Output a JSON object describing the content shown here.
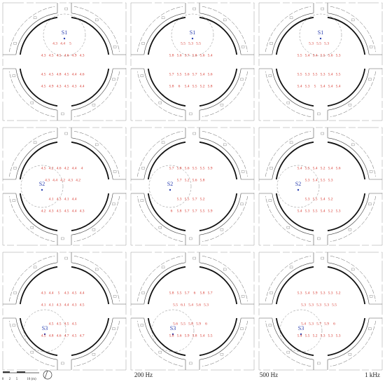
{
  "panels": [
    {
      "source": "S1",
      "rows": [
        [
          4.3,
          4.4,
          5.0
        ],
        [
          4.3,
          4.5,
          4.5,
          4.6,
          4.9,
          4.3
        ],
        [
          4.5,
          4.5,
          4.8,
          4.5,
          4.4,
          4.6
        ],
        [
          4.5,
          4.9,
          4.3,
          4.5,
          4.3,
          4.4
        ]
      ]
    },
    {
      "source": "S1",
      "rows": [
        [
          5.5,
          5.3,
          5.5
        ],
        [
          5.8,
          5.6,
          5.7,
          5.8,
          5.6,
          5.4
        ],
        [
          5.7,
          5.5,
          5.6,
          5.7,
          5.4,
          5.6
        ],
        [
          5.8,
          6.0,
          5.4,
          5.5,
          5.2,
          5.8
        ]
      ]
    },
    {
      "source": "S1",
      "rows": [
        [
          5.3,
          5.5,
          5.3
        ],
        [
          5.5,
          5.4,
          5.4,
          5.5,
          5.6,
          5.3
        ],
        [
          5.5,
          5.3,
          5.5,
          5.3,
          5.4,
          5.5
        ],
        [
          5.4,
          5.3,
          5.0,
          5.4,
          5.4,
          5.4
        ]
      ]
    },
    {
      "source": "S2",
      "rows": [
        [
          4.5,
          4.2,
          4.6,
          4.2,
          4.4,
          4.0
        ],
        [
          4.3,
          4.4,
          4.2,
          4.3,
          4.2
        ],
        [
          4.1,
          4.3,
          4.1,
          4.4
        ],
        [
          4.2,
          4.3,
          4.5,
          4.5,
          4.4,
          4.3
        ]
      ]
    },
    {
      "source": "S2",
      "rows": [
        [
          5.7,
          5.8,
          5.6,
          5.5,
          5.5,
          5.9
        ],
        [
          5.7,
          5.2,
          5.6,
          5.8
        ],
        [
          5.3,
          5.5,
          5.7,
          5.2
        ],
        [
          6.0,
          5.8,
          5.7,
          5.7,
          5.5,
          5.9
        ]
      ]
    },
    {
      "source": "S2",
      "rows": [
        [
          5.4,
          5.5,
          5.4,
          5.2,
          5.4,
          5.6
        ],
        [
          5.3,
          5.4,
          5.5,
          5.3
        ],
        [
          5.3,
          5.5,
          5.4,
          5.2
        ],
        [
          5.4,
          5.3,
          5.5,
          5.4,
          5.2,
          5.3
        ]
      ]
    },
    {
      "source": "S3",
      "rows": [
        [
          4.3,
          4.4,
          5.0,
          4.3,
          4.5,
          4.4
        ],
        [
          4.1,
          4.1,
          4.3,
          4.4,
          4.3,
          4.5
        ],
        [
          4.5,
          4.5,
          4.5,
          4.5
        ],
        [
          4.5,
          4.8,
          4.6,
          4.7,
          4.5,
          4.7
        ]
      ]
    },
    {
      "source": "S3",
      "rows": [
        [
          5.8,
          5.5,
          5.7,
          6.0,
          5.8,
          5.7
        ],
        [
          5.5,
          6.1,
          5.4,
          5.6,
          5.3
        ],
        [
          5.6,
          5.5,
          5.8,
          5.9,
          6.0
        ],
        [
          5.8,
          5.6,
          5.9,
          5.8,
          5.4,
          5.5
        ]
      ]
    },
    {
      "source": "S3",
      "rows": [
        [
          5.3,
          5.4,
          5.9,
          5.3,
          5.3,
          5.2
        ],
        [
          5.3,
          5.3,
          5.3,
          5.3,
          5.5
        ],
        [
          5.4,
          5.3,
          5.7,
          5.9,
          6.0
        ],
        [
          5.4,
          5.5,
          5.2,
          5.3,
          5.3,
          5.3
        ]
      ]
    }
  ],
  "columns": [
    "200 Hz",
    "500 Hz",
    "1 kHz"
  ],
  "scale_bar": [
    "0",
    "2",
    "5",
    "10 (m)"
  ]
}
